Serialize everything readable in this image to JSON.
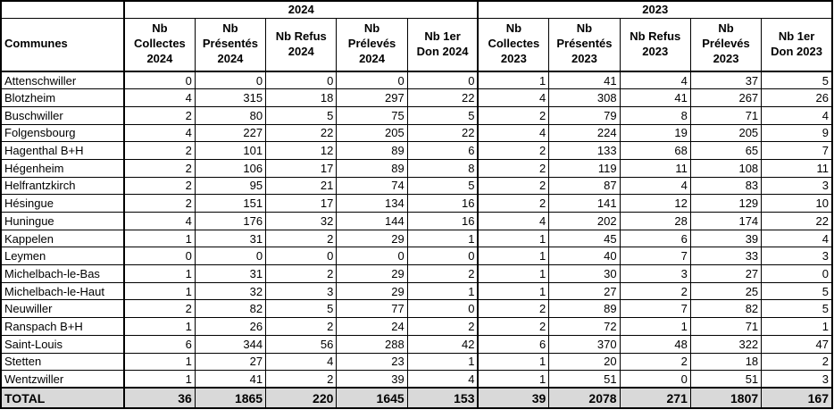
{
  "table": {
    "corner_label": "",
    "communes_header": "Communes",
    "year_groups": [
      {
        "label": "2024"
      },
      {
        "label": "2023"
      }
    ],
    "columns": [
      "Nb\nCollectes\n2024",
      "Nb\nPrésentés\n2024",
      "Nb Refus\n2024",
      "Nb\nPrélevés\n2024",
      "Nb 1er\nDon 2024",
      "Nb\nCollectes\n2023",
      "Nb\nPrésentés\n2023",
      "Nb Refus\n2023",
      "Nb\nPrélevés\n2023",
      "Nb 1er\nDon 2023"
    ],
    "rows": [
      {
        "commune": "Attenschwiller",
        "values": [
          0,
          0,
          0,
          0,
          0,
          1,
          41,
          4,
          37,
          5
        ]
      },
      {
        "commune": "Blotzheim",
        "values": [
          4,
          315,
          18,
          297,
          22,
          4,
          308,
          41,
          267,
          26
        ]
      },
      {
        "commune": "Buschwiller",
        "values": [
          2,
          80,
          5,
          75,
          5,
          2,
          79,
          8,
          71,
          4
        ]
      },
      {
        "commune": "Folgensbourg",
        "values": [
          4,
          227,
          22,
          205,
          22,
          4,
          224,
          19,
          205,
          9
        ]
      },
      {
        "commune": "Hagenthal B+H",
        "values": [
          2,
          101,
          12,
          89,
          6,
          2,
          133,
          68,
          65,
          7
        ]
      },
      {
        "commune": "Hégenheim",
        "values": [
          2,
          106,
          17,
          89,
          8,
          2,
          119,
          11,
          108,
          11
        ]
      },
      {
        "commune": "Helfrantzkirch",
        "values": [
          2,
          95,
          21,
          74,
          5,
          2,
          87,
          4,
          83,
          3
        ]
      },
      {
        "commune": "Hésingue",
        "values": [
          2,
          151,
          17,
          134,
          16,
          2,
          141,
          12,
          129,
          10
        ]
      },
      {
        "commune": "Huningue",
        "values": [
          4,
          176,
          32,
          144,
          16,
          4,
          202,
          28,
          174,
          22
        ]
      },
      {
        "commune": "Kappelen",
        "values": [
          1,
          31,
          2,
          29,
          1,
          1,
          45,
          6,
          39,
          4
        ]
      },
      {
        "commune": "Leymen",
        "values": [
          0,
          0,
          0,
          0,
          0,
          1,
          40,
          7,
          33,
          3
        ]
      },
      {
        "commune": "Michelbach-le-Bas",
        "values": [
          1,
          31,
          2,
          29,
          2,
          1,
          30,
          3,
          27,
          0
        ]
      },
      {
        "commune": "Michelbach-le-Haut",
        "values": [
          1,
          32,
          3,
          29,
          1,
          1,
          27,
          2,
          25,
          5
        ]
      },
      {
        "commune": "Neuwiller",
        "values": [
          2,
          82,
          5,
          77,
          0,
          2,
          89,
          7,
          82,
          5
        ]
      },
      {
        "commune": "Ranspach B+H",
        "values": [
          1,
          26,
          2,
          24,
          2,
          2,
          72,
          1,
          71,
          1
        ]
      },
      {
        "commune": "Saint-Louis",
        "values": [
          6,
          344,
          56,
          288,
          42,
          6,
          370,
          48,
          322,
          47
        ]
      },
      {
        "commune": "Stetten",
        "values": [
          1,
          27,
          4,
          23,
          1,
          1,
          20,
          2,
          18,
          2
        ]
      },
      {
        "commune": "Wentzwiller",
        "values": [
          1,
          41,
          2,
          39,
          4,
          1,
          51,
          0,
          51,
          3
        ]
      }
    ],
    "total": {
      "label": "TOTAL",
      "values": [
        36,
        1865,
        220,
        1645,
        153,
        39,
        2078,
        271,
        1807,
        167
      ]
    }
  },
  "colors": {
    "border": "#000000",
    "text": "#000000",
    "background": "#ffffff",
    "total_row_bg": "#d9d9d9"
  }
}
